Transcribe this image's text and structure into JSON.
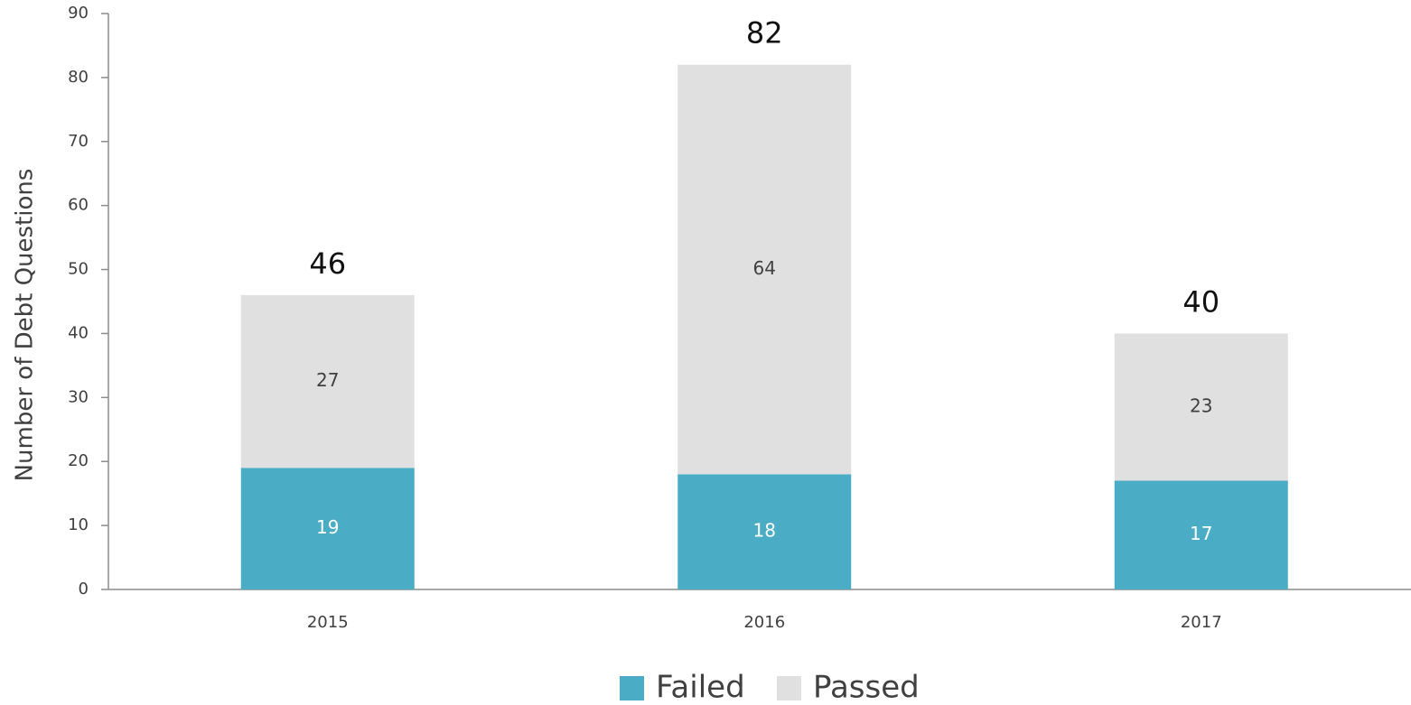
{
  "chart_data": {
    "type": "stacked_bar",
    "y_label": "Number of Debt Questions",
    "categories": [
      "2015",
      "2016",
      "2017"
    ],
    "series": [
      {
        "name": "Failed",
        "color": "#4bacc6",
        "values": [
          19,
          18,
          17
        ]
      },
      {
        "name": "Passed",
        "color": "#dfe0df",
        "values": [
          27,
          64,
          23
        ]
      }
    ],
    "totals": [
      46,
      82,
      40
    ],
    "ylim": [
      0,
      90
    ],
    "yticks": [
      0,
      10,
      20,
      30,
      40,
      50,
      60,
      70,
      80,
      90
    ],
    "grid": false,
    "legend": "bottom"
  }
}
